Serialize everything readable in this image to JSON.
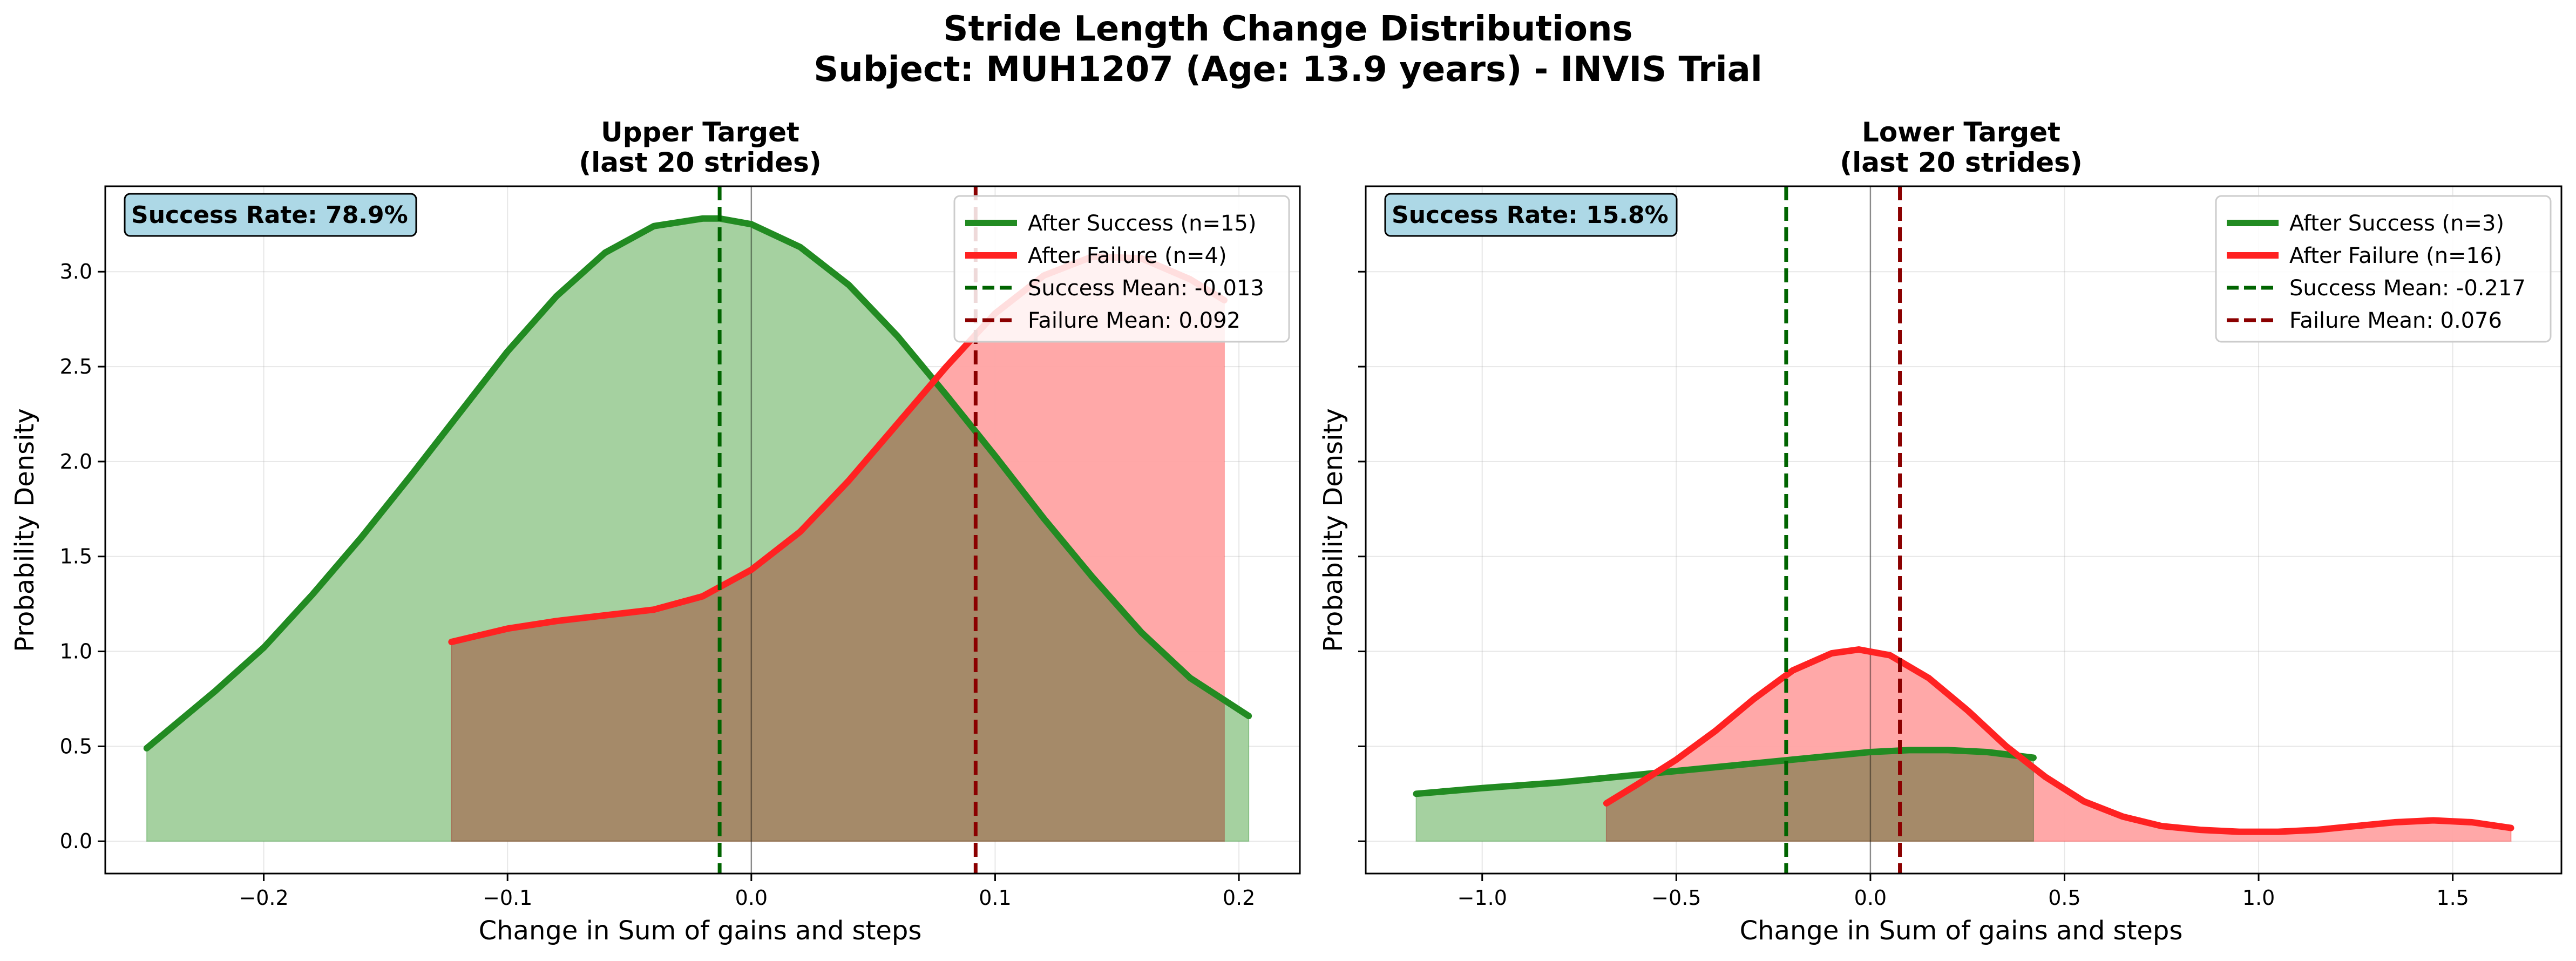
{
  "figure": {
    "title_line1": "Stride Length Change Distributions",
    "title_line2": "Subject: MUH1207 (Age: 13.9 years) - INVIS Trial"
  },
  "colors": {
    "success": "#228b22",
    "failure": "#ff2222",
    "success_fill": "#a5d1a0",
    "failure_fill": "#ffa3a3",
    "overlap_fill": "#c2876a",
    "success_mean": "#006400",
    "failure_mean": "#8b0000",
    "rate_box": "#add8e6"
  },
  "chart_data": [
    {
      "type": "area",
      "title_line1": "Upper Target",
      "title_line2": "(last 20 strides)",
      "xlabel": "Change in Sum of gains and steps",
      "ylabel": "Probability Density",
      "xlim": [
        -0.265,
        0.225
      ],
      "ylim": [
        -0.17,
        3.45
      ],
      "xticks": [
        -0.2,
        -0.1,
        0.0,
        0.1,
        0.2
      ],
      "xtick_labels": [
        "−0.2",
        "−0.1",
        "0.0",
        "0.1",
        "0.2"
      ],
      "yticks": [
        0.0,
        0.5,
        1.0,
        1.5,
        2.0,
        2.5,
        3.0
      ],
      "ytick_labels": [
        "0.0",
        "0.5",
        "1.0",
        "1.5",
        "2.0",
        "2.5",
        "3.0"
      ],
      "grid": true,
      "legend_position": "upper right",
      "success_rate_label": "Success Rate: 78.9%",
      "series": [
        {
          "name": "After Success (n=15)",
          "x": [
            -0.248,
            -0.22,
            -0.2,
            -0.18,
            -0.16,
            -0.14,
            -0.12,
            -0.1,
            -0.08,
            -0.06,
            -0.04,
            -0.02,
            -0.013,
            0.0,
            0.02,
            0.04,
            0.06,
            0.08,
            0.1,
            0.12,
            0.14,
            0.16,
            0.18,
            0.204
          ],
          "y": [
            0.49,
            0.79,
            1.02,
            1.3,
            1.6,
            1.92,
            2.25,
            2.58,
            2.87,
            3.1,
            3.24,
            3.28,
            3.28,
            3.25,
            3.13,
            2.93,
            2.66,
            2.35,
            2.03,
            1.7,
            1.39,
            1.1,
            0.86,
            0.66
          ]
        },
        {
          "name": "After Failure (n=4)",
          "x": [
            -0.123,
            -0.1,
            -0.08,
            -0.06,
            -0.04,
            -0.02,
            0.0,
            0.02,
            0.04,
            0.06,
            0.08,
            0.1,
            0.12,
            0.14,
            0.16,
            0.18,
            0.194
          ],
          "y": [
            1.05,
            1.12,
            1.16,
            1.19,
            1.22,
            1.29,
            1.43,
            1.63,
            1.9,
            2.2,
            2.5,
            2.78,
            2.98,
            3.08,
            3.07,
            2.96,
            2.85
          ]
        }
      ],
      "mean_lines": [
        {
          "name": "Success Mean: -0.013",
          "x": -0.013
        },
        {
          "name": "Failure Mean: 0.092",
          "x": 0.092
        }
      ]
    },
    {
      "type": "area",
      "title_line1": "Lower Target",
      "title_line2": "(last 20 strides)",
      "xlabel": "Change in Sum of gains and steps",
      "ylabel": "Probability Density",
      "xlim": [
        -1.3,
        1.78
      ],
      "ylim": [
        -0.17,
        3.45
      ],
      "xticks": [
        -1.0,
        -0.5,
        0.0,
        0.5,
        1.0,
        1.5
      ],
      "xtick_labels": [
        "−1.0",
        "−0.5",
        "0.0",
        "0.5",
        "1.0",
        "1.5"
      ],
      "yticks": [
        0.0,
        0.5,
        1.0,
        1.5,
        2.0,
        2.5,
        3.0
      ],
      "ytick_labels": [],
      "grid": true,
      "legend_position": "upper right",
      "success_rate_label": "Success Rate: 15.8%",
      "series": [
        {
          "name": "After Success (n=3)",
          "x": [
            -1.17,
            -1.0,
            -0.8,
            -0.6,
            -0.4,
            -0.2,
            0.0,
            0.1,
            0.2,
            0.3,
            0.42
          ],
          "y": [
            0.25,
            0.28,
            0.31,
            0.35,
            0.39,
            0.43,
            0.47,
            0.48,
            0.48,
            0.47,
            0.44
          ]
        },
        {
          "name": "After Failure (n=16)",
          "x": [
            -0.68,
            -0.6,
            -0.5,
            -0.4,
            -0.3,
            -0.2,
            -0.1,
            -0.03,
            0.05,
            0.15,
            0.25,
            0.35,
            0.45,
            0.55,
            0.65,
            0.75,
            0.85,
            0.95,
            1.05,
            1.15,
            1.25,
            1.35,
            1.45,
            1.55,
            1.65
          ],
          "y": [
            0.2,
            0.3,
            0.43,
            0.58,
            0.75,
            0.9,
            0.99,
            1.01,
            0.98,
            0.86,
            0.69,
            0.5,
            0.34,
            0.21,
            0.13,
            0.08,
            0.06,
            0.05,
            0.05,
            0.06,
            0.08,
            0.1,
            0.11,
            0.1,
            0.07
          ]
        }
      ],
      "mean_lines": [
        {
          "name": "Success Mean: -0.217",
          "x": -0.217
        },
        {
          "name": "Failure Mean: 0.076",
          "x": 0.076
        }
      ]
    }
  ]
}
